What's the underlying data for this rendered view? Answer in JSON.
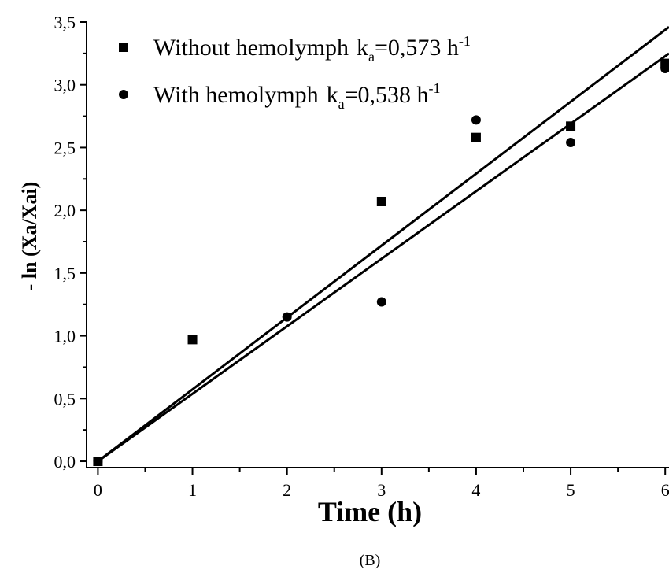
{
  "chart_data": {
    "type": "scatter",
    "x_label": "Time (h)",
    "y_label": "- ln (Xa/Xai)",
    "caption": "(B)",
    "xlim": [
      -0.12,
      6.04
    ],
    "ylim": [
      -0.05,
      3.5
    ],
    "xticks": [
      0,
      1,
      2,
      3,
      4,
      5,
      6
    ],
    "xminorticks": [
      0.5,
      1.5,
      2.5,
      3.5,
      4.5,
      5.5
    ],
    "yticks": [
      {
        "value": 0,
        "label": "0,0"
      },
      {
        "value": 0.5,
        "label": "0,5"
      },
      {
        "value": 1,
        "label": "1,0"
      },
      {
        "value": 1.5,
        "label": "1,5"
      },
      {
        "value": 2,
        "label": "2,0"
      },
      {
        "value": 2.5,
        "label": "2,5"
      },
      {
        "value": 3,
        "label": "3,0"
      },
      {
        "value": 3.5,
        "label": "3,5"
      }
    ],
    "yminorticks": [
      0.25,
      0.75,
      1.25,
      1.75,
      2.25,
      2.75,
      3.25
    ],
    "series": [
      {
        "name": "Without hemolymph",
        "marker": "square",
        "color": "#000000",
        "x": [
          0,
          1,
          3,
          4,
          5,
          6
        ],
        "values": [
          0,
          0.97,
          2.07,
          2.58,
          2.67,
          3.17
        ],
        "rate_symbol": "k",
        "rate_subscript": "a",
        "rate_label": "=0,573 h",
        "rate_unit_exponent": "-1",
        "rate": 0.573
      },
      {
        "name": "With hemolymph",
        "marker": "circle",
        "color": "#000000",
        "x": [
          0,
          2,
          3,
          4,
          5,
          6
        ],
        "values": [
          0,
          1.15,
          1.27,
          2.72,
          2.54,
          3.13
        ],
        "rate_symbol": "k",
        "rate_subscript": "a",
        "rate_label": "=0,538 h",
        "rate_unit_exponent": "-1",
        "rate": 0.538
      }
    ]
  }
}
